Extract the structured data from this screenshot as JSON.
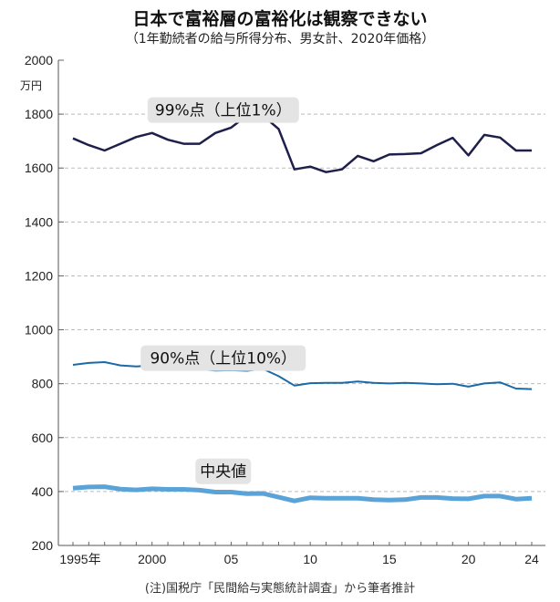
{
  "title": "日本で富裕層の富裕化は観察できない",
  "subtitle": "（1年勤続者の給与所得分布、男女計、2020年価格）",
  "note": "(注)国税庁「民間給与実態統計調査」から筆者推計",
  "chart_data": {
    "type": "line",
    "ylabel": "万円",
    "ylim": [
      200,
      2000
    ],
    "yticks": [
      200,
      400,
      600,
      800,
      1000,
      1200,
      1400,
      1600,
      1800,
      2000
    ],
    "xlim": [
      1995,
      2024
    ],
    "xticks": [
      {
        "v": 1995,
        "label": "1995年"
      },
      {
        "v": 2000,
        "label": "2000"
      },
      {
        "v": 2005,
        "label": "05"
      },
      {
        "v": 2010,
        "label": "10"
      },
      {
        "v": 2015,
        "label": "15"
      },
      {
        "v": 2020,
        "label": "20"
      },
      {
        "v": 2024,
        "label": "24"
      }
    ],
    "grid": true,
    "x": [
      1995,
      1996,
      1997,
      1998,
      1999,
      2000,
      2001,
      2002,
      2003,
      2004,
      2005,
      2006,
      2007,
      2008,
      2009,
      2010,
      2011,
      2012,
      2013,
      2014,
      2015,
      2016,
      2017,
      2018,
      2019,
      2020,
      2021,
      2022,
      2023,
      2024
    ],
    "series": [
      {
        "name": "99%点（上位1%）",
        "color": "#1e1f4a",
        "width": 2.5,
        "values": [
          1710,
          1685,
          1665,
          1690,
          1715,
          1730,
          1705,
          1690,
          1690,
          1730,
          1750,
          1795,
          1795,
          1745,
          1595,
          1605,
          1585,
          1595,
          1645,
          1625,
          1650,
          1652,
          1655,
          1685,
          1712,
          1647,
          1723,
          1713,
          1665,
          1665
        ]
      },
      {
        "name": "90%点（上位10%）",
        "color": "#1a6aa8",
        "width": 2,
        "values": [
          870,
          877,
          880,
          868,
          864,
          868,
          862,
          856,
          854,
          849,
          850,
          848,
          855,
          828,
          793,
          802,
          803,
          803,
          808,
          803,
          801,
          803,
          801,
          798,
          800,
          789,
          801,
          805,
          782,
          780
        ]
      },
      {
        "name": "中央値",
        "color": "#5aa3d8",
        "width": 5,
        "values": [
          412,
          417,
          418,
          409,
          406,
          410,
          408,
          408,
          405,
          398,
          398,
          392,
          393,
          379,
          365,
          377,
          375,
          375,
          375,
          370,
          368,
          370,
          378,
          378,
          374,
          373,
          383,
          383,
          372,
          375
        ]
      }
    ]
  }
}
